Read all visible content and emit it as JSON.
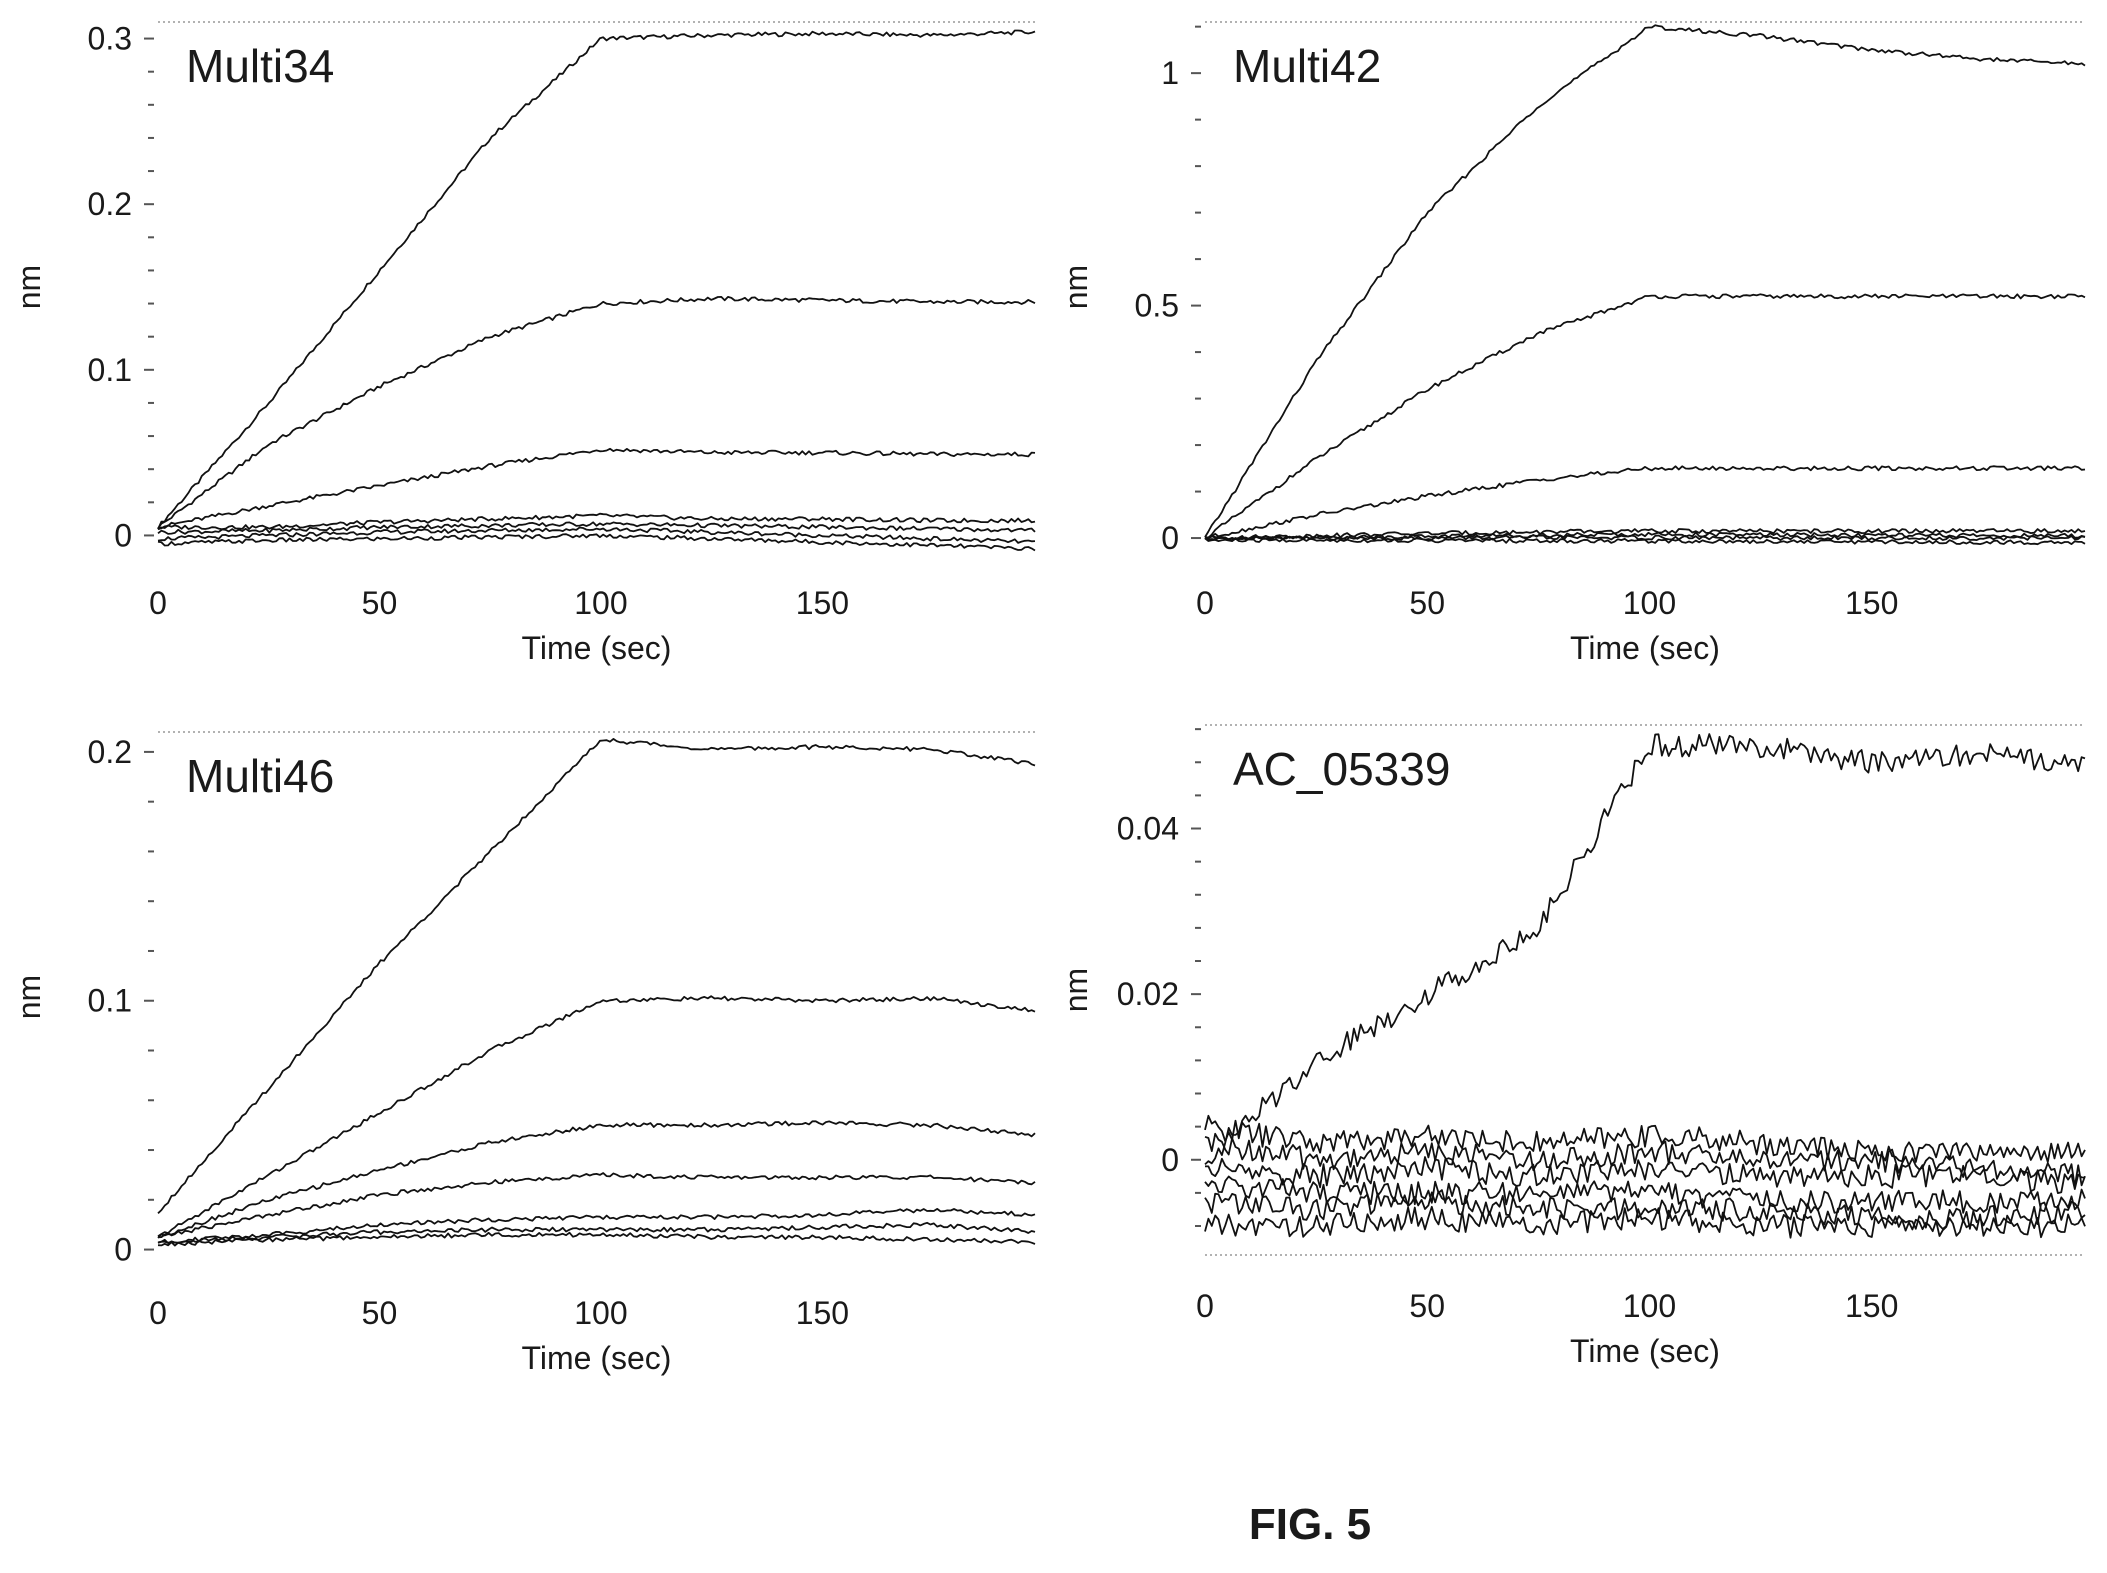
{
  "figure": {
    "caption": "FIG. 5"
  },
  "chart_data": [
    {
      "type": "line",
      "title": "Multi34",
      "xlabel": "Time (sec)",
      "ylabel": "nm",
      "xlim": [
        0,
        198
      ],
      "ylim": [
        -0.01,
        0.31
      ],
      "xticks": [
        0,
        50,
        100,
        150
      ],
      "xtick_labels": [
        "0",
        "50",
        "100",
        "150"
      ],
      "yticks": [
        0,
        0.1,
        0.2,
        0.3
      ],
      "ytick_labels": [
        "0",
        "0.1",
        "0.2",
        "0.3"
      ],
      "grid": "dotted line at top",
      "series_note": "association phase 0-100 sec, dissociation 100-198 sec",
      "series": [
        {
          "x": [
            0,
            25,
            50,
            75,
            100,
            125,
            150,
            175,
            198
          ],
          "y": [
            0.005,
            0.08,
            0.16,
            0.24,
            0.3,
            0.302,
            0.303,
            0.302,
            0.304
          ]
        },
        {
          "x": [
            0,
            25,
            50,
            75,
            100,
            125,
            150,
            175,
            198
          ],
          "y": [
            0.005,
            0.055,
            0.09,
            0.12,
            0.14,
            0.143,
            0.142,
            0.141,
            0.141
          ]
        },
        {
          "x": [
            0,
            25,
            50,
            75,
            100,
            125,
            150,
            175,
            198
          ],
          "y": [
            0.005,
            0.018,
            0.03,
            0.042,
            0.052,
            0.05,
            0.05,
            0.049,
            0.049
          ]
        },
        {
          "x": [
            0,
            25,
            50,
            75,
            100,
            125,
            150,
            175,
            198
          ],
          "y": [
            0.005,
            0.005,
            0.008,
            0.01,
            0.012,
            0.01,
            0.01,
            0.009,
            0.009
          ]
        },
        {
          "x": [
            0,
            25,
            50,
            75,
            100,
            125,
            150,
            175,
            198
          ],
          "y": [
            0.002,
            0.003,
            0.005,
            0.006,
            0.007,
            0.006,
            0.005,
            0.004,
            0.003
          ]
        },
        {
          "x": [
            0,
            25,
            50,
            75,
            100,
            125,
            150,
            175,
            198
          ],
          "y": [
            -0.002,
            0.0,
            0.002,
            0.003,
            0.004,
            0.002,
            0.0,
            -0.002,
            -0.004
          ]
        },
        {
          "x": [
            0,
            25,
            50,
            75,
            100,
            125,
            150,
            175,
            198
          ],
          "y": [
            -0.005,
            -0.003,
            -0.002,
            -0.001,
            0.0,
            -0.002,
            -0.004,
            -0.006,
            -0.008
          ]
        }
      ]
    },
    {
      "type": "line",
      "title": "Multi42",
      "xlabel": "Time (sec)",
      "ylabel": "nm",
      "xlim": [
        0,
        198
      ],
      "ylim": [
        -0.03,
        1.11
      ],
      "xticks": [
        0,
        50,
        100,
        150
      ],
      "xtick_labels": [
        "0",
        "50",
        "100",
        "150"
      ],
      "yticks": [
        0,
        0.5,
        1
      ],
      "ytick_labels": [
        "0",
        "0.5",
        "1"
      ],
      "grid": "dotted line at top",
      "series_note": "association phase 0-100 sec, dissociation 100-198 sec",
      "series": [
        {
          "x": [
            0,
            25,
            50,
            75,
            100,
            125,
            150,
            175,
            198
          ],
          "y": [
            0.0,
            0.38,
            0.7,
            0.93,
            1.1,
            1.08,
            1.05,
            1.03,
            1.02
          ]
        },
        {
          "x": [
            0,
            25,
            50,
            75,
            100,
            125,
            150,
            175,
            198
          ],
          "y": [
            0.0,
            0.17,
            0.32,
            0.44,
            0.52,
            0.52,
            0.52,
            0.52,
            0.52
          ]
        },
        {
          "x": [
            0,
            25,
            50,
            75,
            100,
            125,
            150,
            175,
            198
          ],
          "y": [
            0.0,
            0.05,
            0.09,
            0.125,
            0.15,
            0.15,
            0.15,
            0.15,
            0.15
          ]
        },
        {
          "x": [
            0,
            25,
            50,
            75,
            100,
            125,
            150,
            175,
            198
          ],
          "y": [
            0.0,
            0.005,
            0.01,
            0.013,
            0.015,
            0.015,
            0.015,
            0.015,
            0.015
          ]
        },
        {
          "x": [
            0,
            25,
            50,
            75,
            100,
            125,
            150,
            175,
            198
          ],
          "y": [
            0.0,
            0.002,
            0.004,
            0.006,
            0.008,
            0.007,
            0.006,
            0.005,
            0.005
          ]
        },
        {
          "x": [
            0,
            25,
            50,
            75,
            100,
            125,
            150,
            175,
            198
          ],
          "y": [
            0.0,
            0.0,
            0.0,
            0.001,
            0.001,
            0.0,
            0.0,
            0.0,
            0.0
          ]
        },
        {
          "x": [
            0,
            25,
            50,
            75,
            100,
            125,
            150,
            175,
            198
          ],
          "y": [
            -0.005,
            -0.005,
            -0.005,
            -0.006,
            -0.006,
            -0.007,
            -0.008,
            -0.009,
            -0.01
          ]
        }
      ]
    },
    {
      "type": "line",
      "title": "Multi46",
      "xlabel": "Time (sec)",
      "ylabel": "nm",
      "xlim": [
        0,
        198
      ],
      "ylim": [
        -0.005,
        0.208
      ],
      "xticks": [
        0,
        50,
        100,
        150
      ],
      "xtick_labels": [
        "0",
        "50",
        "100",
        "150"
      ],
      "yticks": [
        0,
        0.1,
        0.2
      ],
      "ytick_labels": [
        "0",
        "0.1",
        "0.2"
      ],
      "grid": "dotted line at top",
      "series_note": "association phase 0-100 sec, dissociation 100-198 sec",
      "series": [
        {
          "x": [
            0,
            25,
            50,
            75,
            100,
            125,
            150,
            175,
            198
          ],
          "y": [
            0.015,
            0.065,
            0.115,
            0.16,
            0.205,
            0.201,
            0.202,
            0.201,
            0.195
          ]
        },
        {
          "x": [
            0,
            25,
            50,
            75,
            100,
            125,
            150,
            175,
            198
          ],
          "y": [
            0.005,
            0.03,
            0.055,
            0.08,
            0.1,
            0.101,
            0.1,
            0.101,
            0.096
          ]
        },
        {
          "x": [
            0,
            25,
            50,
            75,
            100,
            125,
            150,
            175,
            198
          ],
          "y": [
            0.005,
            0.02,
            0.032,
            0.043,
            0.05,
            0.05,
            0.051,
            0.05,
            0.046
          ]
        },
        {
          "x": [
            0,
            25,
            50,
            75,
            100,
            125,
            150,
            175,
            198
          ],
          "y": [
            0.005,
            0.014,
            0.022,
            0.027,
            0.03,
            0.029,
            0.029,
            0.029,
            0.027
          ]
        },
        {
          "x": [
            0,
            25,
            50,
            75,
            100,
            125,
            150,
            175,
            198
          ],
          "y": [
            0.003,
            0.006,
            0.01,
            0.012,
            0.013,
            0.013,
            0.014,
            0.016,
            0.014
          ]
        },
        {
          "x": [
            0,
            25,
            50,
            75,
            100,
            125,
            150,
            175,
            198
          ],
          "y": [
            0.003,
            0.005,
            0.007,
            0.008,
            0.008,
            0.008,
            0.009,
            0.01,
            0.007
          ]
        },
        {
          "x": [
            0,
            25,
            50,
            75,
            100,
            125,
            150,
            175,
            198
          ],
          "y": [
            0.002,
            0.004,
            0.005,
            0.006,
            0.006,
            0.005,
            0.005,
            0.004,
            0.003
          ]
        }
      ]
    },
    {
      "type": "line",
      "title": "AC_05339",
      "xlabel": "Time (sec)",
      "ylabel": "nm",
      "xlim": [
        0,
        198
      ],
      "ylim": [
        -0.0115,
        0.0525
      ],
      "xticks": [
        0,
        50,
        100,
        150
      ],
      "xtick_labels": [
        "0",
        "50",
        "100",
        "150"
      ],
      "yticks": [
        0,
        0.02,
        0.04
      ],
      "ytick_labels": [
        "0",
        "0.02",
        "0.04"
      ],
      "grid": "dotted lines at top and bottom",
      "series_note": "association phase 0-100 sec, dissociation 100-198 sec; traces are noisy",
      "series": [
        {
          "x": [
            0,
            25,
            50,
            75,
            100,
            125,
            150,
            175,
            198
          ],
          "y": [
            0.0,
            0.012,
            0.02,
            0.028,
            0.05,
            0.05,
            0.048,
            0.049,
            0.048
          ]
        },
        {
          "x": [
            0,
            25,
            50,
            75,
            100,
            125,
            150,
            175,
            198
          ],
          "y": [
            0.004,
            0.002,
            0.003,
            0.002,
            0.003,
            0.002,
            0.001,
            0.001,
            0.001
          ]
        },
        {
          "x": [
            0,
            25,
            50,
            75,
            100,
            125,
            150,
            175,
            198
          ],
          "y": [
            0.002,
            0.0,
            0.001,
            0.0,
            0.001,
            0.0,
            0.0,
            -0.001,
            -0.002
          ]
        },
        {
          "x": [
            0,
            25,
            50,
            75,
            100,
            125,
            150,
            175,
            198
          ],
          "y": [
            -0.001,
            -0.002,
            -0.001,
            -0.002,
            -0.001,
            -0.002,
            -0.002,
            -0.002,
            -0.003
          ]
        },
        {
          "x": [
            0,
            25,
            50,
            75,
            100,
            125,
            150,
            175,
            198
          ],
          "y": [
            -0.003,
            -0.004,
            -0.004,
            -0.004,
            -0.004,
            -0.005,
            -0.005,
            -0.005,
            -0.005
          ]
        },
        {
          "x": [
            0,
            25,
            50,
            75,
            100,
            125,
            150,
            175,
            198
          ],
          "y": [
            -0.005,
            -0.006,
            -0.005,
            -0.006,
            -0.006,
            -0.006,
            -0.007,
            -0.007,
            -0.006
          ]
        },
        {
          "x": [
            0,
            25,
            50,
            75,
            100,
            125,
            150,
            175,
            198
          ],
          "y": [
            -0.008,
            -0.008,
            -0.007,
            -0.008,
            -0.007,
            -0.008,
            -0.008,
            -0.008,
            -0.008
          ]
        }
      ]
    }
  ]
}
